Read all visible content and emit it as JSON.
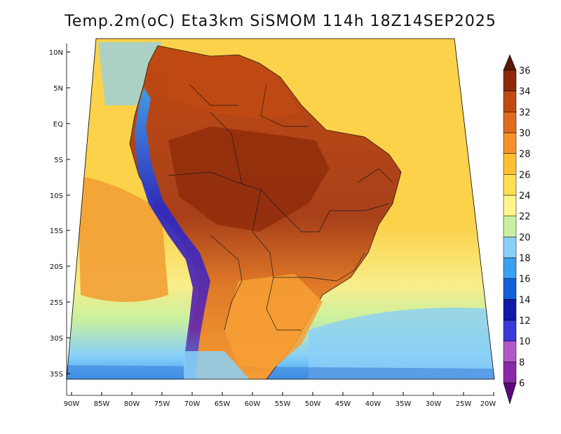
{
  "title": "Temp.2m(oC) Eta3km SiSMOM 114h 18Z14SEP2025",
  "lat_labels": [
    "10N",
    "5N",
    "EQ",
    "5S",
    "10S",
    "15S",
    "20S",
    "25S",
    "30S",
    "35S"
  ],
  "lon_labels": [
    "90W",
    "85W",
    "80W",
    "75W",
    "70W",
    "65W",
    "60W",
    "55W",
    "50W",
    "45W",
    "40W",
    "35W",
    "30W",
    "25W",
    "20W"
  ],
  "colorbar": {
    "labels": [
      "6",
      "8",
      "10",
      "12",
      "14",
      "16",
      "18",
      "20",
      "22",
      "24",
      "26",
      "28",
      "30",
      "32",
      "34",
      "36"
    ],
    "colors": [
      "#5a0a78",
      "#8a2aa8",
      "#b058c8",
      "#3a3ad8",
      "#101aa8",
      "#1060d8",
      "#3aa0f0",
      "#8ad0f8",
      "#c8f0a0",
      "#fff58a",
      "#ffe050",
      "#ffc030",
      "#f7902a",
      "#e06a1e",
      "#c04a12",
      "#8c2a0a",
      "#5a1806"
    ]
  },
  "colors": {
    "ocean_warm": "#fbd24a",
    "ocean_mid": "#f2a035",
    "ocean_cool": "#f8ee8a",
    "ocean_cold": "#b8e8c8",
    "land_hot": "#c8561a",
    "land_very_hot": "#9a3a12",
    "andes_cold": "#2a2ac0"
  }
}
